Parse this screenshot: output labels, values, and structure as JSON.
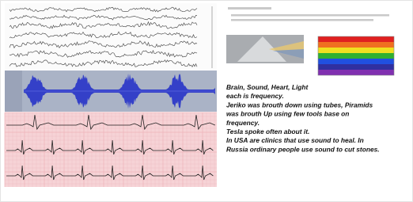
{
  "text": {
    "lines": [
      "Brain, Sound, Heart, Light",
      "each is frequency.",
      "Jeriko was brouth down using tubes, Piramids",
      "was brouth Up using few tools base on",
      "frequency.",
      "Tesla spoke often about it.",
      "In USA are clinics that use sound to heal. In",
      "Russia ordinary people use sound to cut stones."
    ]
  }
}
